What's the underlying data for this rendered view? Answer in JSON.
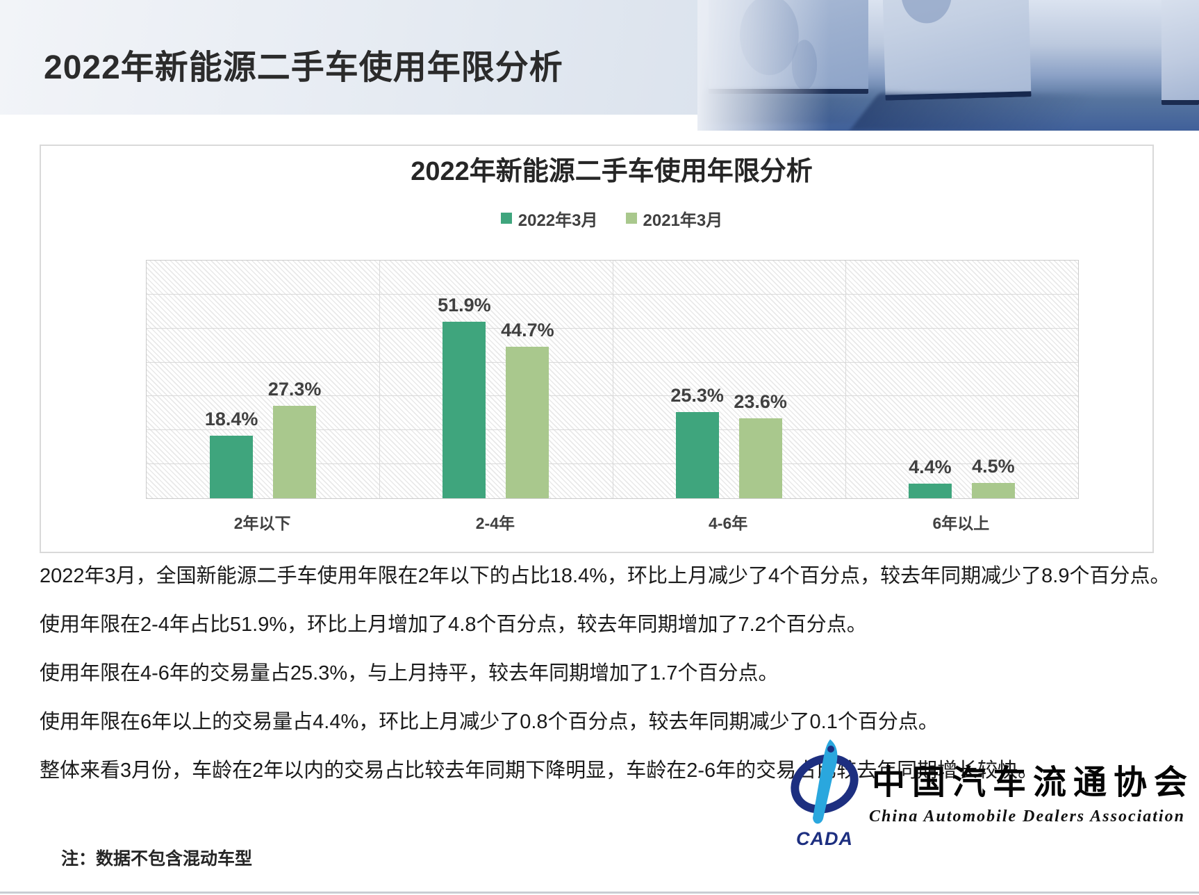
{
  "header": {
    "title": "2022年新能源二手车使用年限分析"
  },
  "chart_data": {
    "type": "bar",
    "title": "2022年新能源二手车使用年限分析",
    "categories": [
      "2年以下",
      "2-4年",
      "4-6年",
      "6年以上"
    ],
    "series": [
      {
        "name": "2022年3月",
        "color": "#3FA57D",
        "values": [
          18.4,
          51.9,
          25.3,
          4.4
        ]
      },
      {
        "name": "2021年3月",
        "color": "#A9C88D",
        "values": [
          27.3,
          44.7,
          23.6,
          4.5
        ]
      }
    ],
    "value_suffix": "%",
    "ylim": [
      0,
      70
    ],
    "gridline_step": 10,
    "grid": true,
    "legend_position": "top",
    "plot_background": "diagonal-hatch",
    "label_color": "#404040"
  },
  "paragraphs": [
    "2022年3月，全国新能源二手车使用年限在2年以下的占比18.4%，环比上月减少了4个百分点，较去年同期减少了8.9个百分点。",
    "使用年限在2-4年占比51.9%，环比上月增加了4.8个百分点，较去年同期增加了7.2个百分点。",
    "使用年限在4-6年的交易量占25.3%，与上月持平，较去年同期增加了1.7个百分点。",
    "使用年限在6年以上的交易量占4.4%，环比上月减少了0.8个百分点，较去年同期减少了0.1个百分点。",
    "整体来看3月份，车龄在2年以内的交易占比较去年同期下降明显，车龄在2-6年的交易占比较去年同期增长较快。"
  ],
  "note": "注：数据不包含混动车型",
  "logo": {
    "acronym": "CADA",
    "name_cn": "中国汽车流通协会",
    "name_en": "China Automobile Dealers Association"
  }
}
